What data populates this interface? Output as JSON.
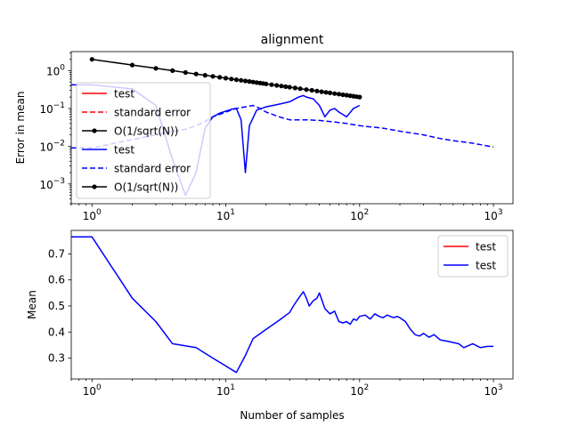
{
  "chart_data": [
    {
      "type": "line",
      "title": "alignment",
      "xlabel": "",
      "ylabel": "Error in mean",
      "xscale": "log",
      "yscale": "log",
      "xlim": [
        0.7,
        1400
      ],
      "ylim": [
        0.0003,
        3.2
      ],
      "xticks": [
        {
          "value": 1,
          "base": "10",
          "exp": "0"
        },
        {
          "value": 10,
          "base": "10",
          "exp": "1"
        },
        {
          "value": 100,
          "base": "10",
          "exp": "2"
        },
        {
          "value": 1000,
          "base": "10",
          "exp": "3"
        }
      ],
      "yticks": [
        {
          "value": 0.001,
          "base": "10",
          "exp": "−3"
        },
        {
          "value": 0.01,
          "base": "10",
          "exp": "−2"
        },
        {
          "value": 0.1,
          "base": "10",
          "exp": "−1"
        },
        {
          "value": 1,
          "base": "10",
          "exp": "0"
        }
      ],
      "grid": false,
      "legend": {
        "placement": "lower-left",
        "entries": [
          {
            "label": "test",
            "color": "#ff0000",
            "style": "solid",
            "marker": false
          },
          {
            "label": "standard error",
            "color": "#ff0000",
            "style": "dashed",
            "marker": false
          },
          {
            "label": "O(1/sqrt(N))",
            "color": "#000000",
            "style": "solid",
            "marker": true
          },
          {
            "label": "test",
            "color": "#0000ff",
            "style": "solid",
            "marker": false
          },
          {
            "label": "standard error",
            "color": "#0000ff",
            "style": "dashed",
            "marker": false
          },
          {
            "label": "O(1/sqrt(N))",
            "color": "#000000",
            "style": "solid",
            "marker": true
          }
        ]
      },
      "series": [
        {
          "name": "test",
          "color": "#0000ff",
          "style": "solid",
          "x": [
            0.7,
            1,
            2,
            3,
            4,
            5,
            6,
            7,
            8,
            9,
            10,
            11,
            12,
            13,
            14,
            15,
            17,
            20,
            25,
            30,
            35,
            38,
            40,
            45,
            50,
            55,
            60,
            65,
            70,
            80,
            90,
            100
          ],
          "y": [
            0.42,
            0.42,
            0.33,
            0.12,
            0.0045,
            0.0005,
            0.002,
            0.03,
            0.06,
            0.075,
            0.085,
            0.095,
            0.1,
            0.05,
            0.002,
            0.035,
            0.09,
            0.11,
            0.13,
            0.15,
            0.2,
            0.22,
            0.2,
            0.18,
            0.12,
            0.06,
            0.09,
            0.1,
            0.08,
            0.06,
            0.1,
            0.12
          ]
        },
        {
          "name": "standard error",
          "color": "#0000ff",
          "style": "dashed",
          "x": [
            0.7,
            1,
            2,
            3,
            4,
            5,
            6,
            7,
            8,
            10,
            12,
            14,
            16,
            18,
            20,
            25,
            30,
            40,
            50,
            60,
            80,
            100,
            150,
            200,
            300,
            400,
            500,
            700,
            1000
          ],
          "y": [
            0.009,
            0.009,
            0.015,
            0.02,
            0.025,
            0.028,
            0.035,
            0.045,
            0.06,
            0.08,
            0.1,
            0.11,
            0.12,
            0.1,
            0.08,
            0.06,
            0.05,
            0.05,
            0.048,
            0.045,
            0.04,
            0.035,
            0.03,
            0.025,
            0.02,
            0.016,
            0.014,
            0.012,
            0.0095
          ]
        },
        {
          "name": "O(1/sqrt(N))",
          "color": "#000000",
          "style": "solid",
          "marker": true,
          "x": [
            1,
            2,
            3,
            4,
            5,
            6,
            7,
            8,
            9,
            10,
            11,
            12,
            13,
            14,
            15,
            16,
            17,
            18,
            19,
            20,
            22,
            24,
            26,
            28,
            30,
            33,
            36,
            40,
            44,
            48,
            52,
            56,
            60,
            65,
            70,
            75,
            80,
            85,
            90,
            95,
            100
          ],
          "y": [
            2.0,
            1.414,
            1.155,
            1.0,
            0.894,
            0.816,
            0.756,
            0.707,
            0.667,
            0.632,
            0.603,
            0.577,
            0.555,
            0.535,
            0.516,
            0.5,
            0.485,
            0.471,
            0.459,
            0.447,
            0.426,
            0.408,
            0.392,
            0.378,
            0.365,
            0.348,
            0.333,
            0.316,
            0.302,
            0.289,
            0.277,
            0.267,
            0.258,
            0.248,
            0.239,
            0.231,
            0.224,
            0.217,
            0.211,
            0.205,
            0.2
          ]
        }
      ]
    },
    {
      "type": "line",
      "title": "",
      "xlabel": "Number of samples",
      "ylabel": "Mean",
      "xscale": "log",
      "yscale": "linear",
      "xlim": [
        0.7,
        1400
      ],
      "ylim": [
        0.22,
        0.79
      ],
      "xticks": [
        {
          "value": 1,
          "base": "10",
          "exp": "0"
        },
        {
          "value": 10,
          "base": "10",
          "exp": "1"
        },
        {
          "value": 100,
          "base": "10",
          "exp": "2"
        },
        {
          "value": 1000,
          "base": "10",
          "exp": "3"
        }
      ],
      "yticks": [
        {
          "value": 0.3,
          "label": "0.3"
        },
        {
          "value": 0.4,
          "label": "0.4"
        },
        {
          "value": 0.5,
          "label": "0.5"
        },
        {
          "value": 0.6,
          "label": "0.6"
        },
        {
          "value": 0.7,
          "label": "0.7"
        }
      ],
      "grid": false,
      "legend": {
        "placement": "upper-right",
        "entries": [
          {
            "label": "test",
            "color": "#ff0000",
            "style": "solid",
            "marker": false
          },
          {
            "label": "test",
            "color": "#0000ff",
            "style": "solid",
            "marker": false
          }
        ]
      },
      "series": [
        {
          "name": "test",
          "color": "#0000ff",
          "style": "solid",
          "x": [
            0.7,
            1,
            2,
            3,
            4,
            6,
            8,
            10,
            12,
            14,
            16,
            20,
            25,
            30,
            32,
            35,
            38,
            40,
            42,
            45,
            48,
            50,
            55,
            60,
            65,
            70,
            75,
            80,
            85,
            90,
            95,
            100,
            110,
            120,
            130,
            140,
            150,
            160,
            170,
            180,
            190,
            200,
            220,
            240,
            260,
            280,
            300,
            330,
            360,
            400,
            450,
            500,
            550,
            600,
            700,
            800,
            900,
            1000
          ],
          "y": [
            0.765,
            0.765,
            0.53,
            0.44,
            0.355,
            0.34,
            0.3,
            0.27,
            0.245,
            0.31,
            0.375,
            0.41,
            0.445,
            0.475,
            0.5,
            0.53,
            0.555,
            0.53,
            0.5,
            0.52,
            0.53,
            0.55,
            0.49,
            0.47,
            0.48,
            0.44,
            0.435,
            0.44,
            0.43,
            0.45,
            0.445,
            0.46,
            0.465,
            0.45,
            0.47,
            0.46,
            0.455,
            0.465,
            0.46,
            0.455,
            0.46,
            0.455,
            0.44,
            0.41,
            0.39,
            0.385,
            0.395,
            0.38,
            0.39,
            0.37,
            0.365,
            0.36,
            0.355,
            0.34,
            0.355,
            0.34,
            0.345,
            0.345
          ]
        }
      ]
    }
  ]
}
